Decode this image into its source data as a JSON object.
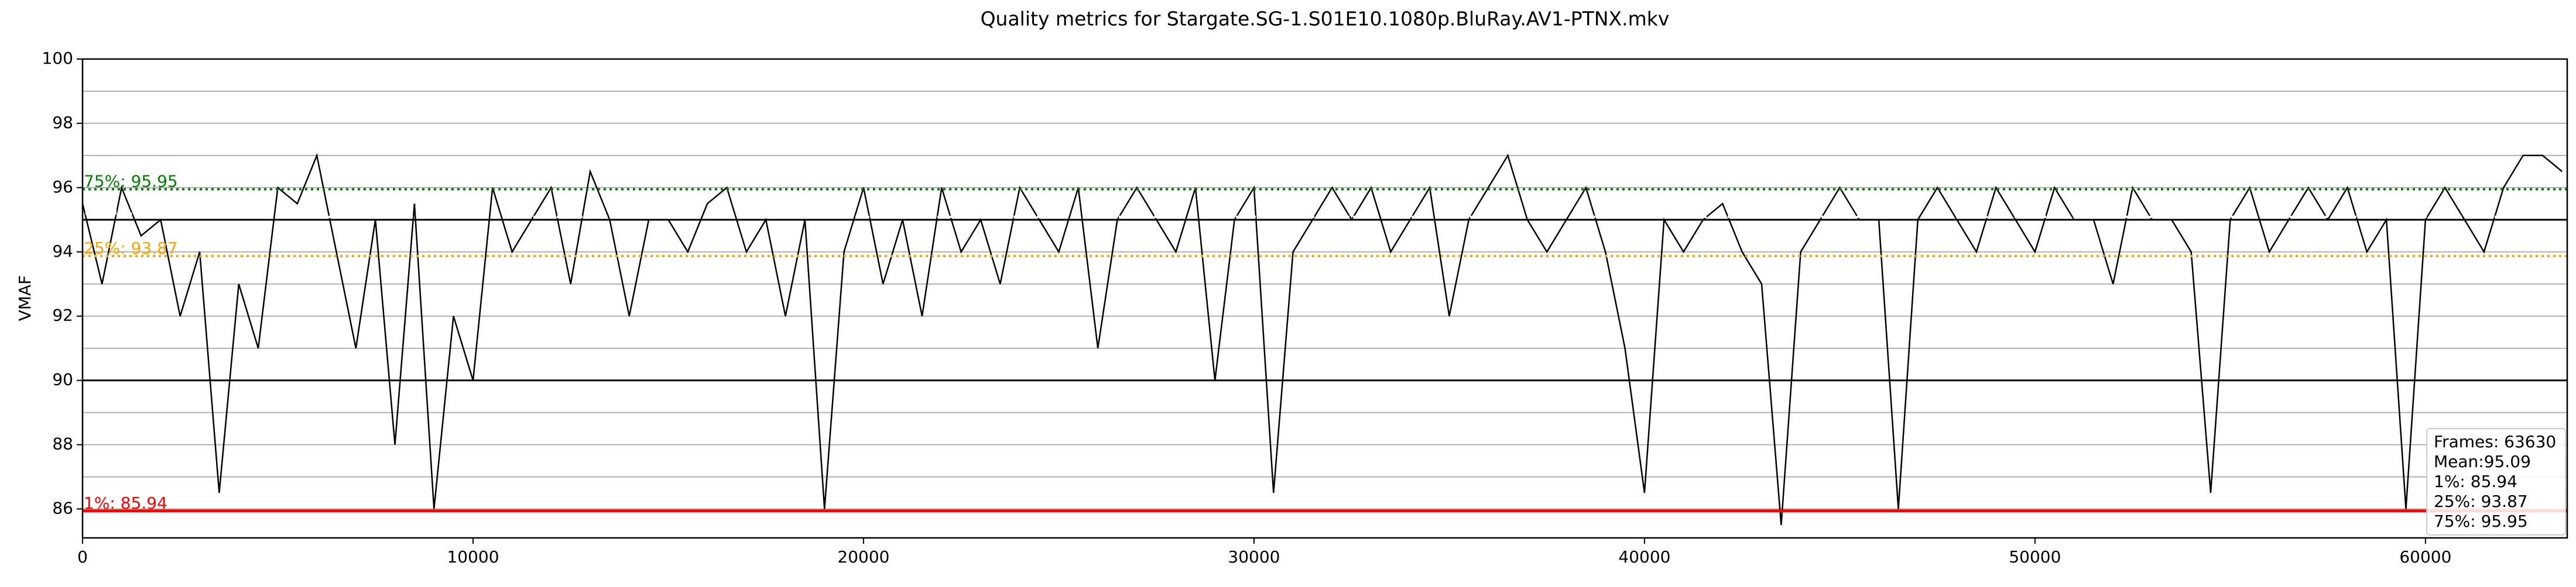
{
  "chart_data": {
    "type": "line",
    "title": "Quality metrics for Stargate.SG-1.S01E10.1080p.BluRay.AV1-PTNX.mkv",
    "y_label": "VMAF",
    "color": "#000000",
    "x": [
      0,
      500,
      1000,
      1500,
      2000,
      2500,
      3000,
      3500,
      4000,
      4500,
      5000,
      5500,
      6000,
      6500,
      7000,
      7500,
      8000,
      8500,
      9000,
      9500,
      10000,
      10500,
      11000,
      11500,
      12000,
      12500,
      13000,
      13500,
      14000,
      14500,
      15000,
      15500,
      16000,
      16500,
      17000,
      17500,
      18000,
      18500,
      19000,
      19500,
      20000,
      20500,
      21000,
      21500,
      22000,
      22500,
      23000,
      23500,
      24000,
      24500,
      25000,
      25500,
      26000,
      26500,
      27000,
      27500,
      28000,
      28500,
      29000,
      29500,
      30000,
      30500,
      31000,
      31500,
      32000,
      32500,
      33000,
      33500,
      34000,
      34500,
      35000,
      35500,
      36000,
      36500,
      37000,
      37500,
      38000,
      38500,
      39000,
      39500,
      40000,
      40500,
      41000,
      41500,
      42000,
      42500,
      43000,
      43500,
      44000,
      44500,
      45000,
      45500,
      46000,
      46500,
      47000,
      47500,
      48000,
      48500,
      49000,
      49500,
      50000,
      50500,
      51000,
      51500,
      52000,
      52500,
      53000,
      53500,
      54000,
      54500,
      55000,
      55500,
      56000,
      56500,
      57000,
      57500,
      58000,
      58500,
      59000,
      59500,
      60000,
      60500,
      61000,
      61500,
      62000,
      62500,
      63000,
      63500
    ],
    "values": [
      95.5,
      93,
      96,
      94.5,
      95,
      92,
      94,
      86.5,
      93,
      91,
      96,
      95.5,
      97,
      94,
      91,
      95,
      88,
      95.5,
      86,
      92,
      90,
      96,
      94,
      95,
      96,
      93,
      96.5,
      95,
      92,
      95,
      95,
      94,
      95.5,
      96,
      94,
      95,
      92,
      95,
      86,
      94,
      96,
      93,
      95,
      92,
      96,
      94,
      95,
      93,
      96,
      95,
      94,
      96,
      91,
      95,
      96,
      95,
      94,
      96,
      90,
      95,
      96,
      86.5,
      94,
      95,
      96,
      95,
      96,
      94,
      95,
      96,
      92,
      95,
      96,
      97,
      95,
      94,
      95,
      96,
      94,
      91,
      86.5,
      95,
      94,
      95,
      95.5,
      94,
      93,
      85.5,
      94,
      95,
      96,
      95,
      95,
      86,
      95,
      96,
      95,
      94,
      96,
      95,
      94,
      96,
      95,
      95,
      93,
      96,
      95,
      95,
      94,
      86.5,
      95,
      96,
      94,
      95,
      96,
      95,
      96,
      94,
      95,
      86,
      95,
      96,
      95,
      94,
      96,
      97,
      97,
      96.5
    ],
    "xlim": [
      0,
      63630
    ],
    "ylim": [
      85.1,
      100
    ],
    "xticks": [
      0,
      10000,
      20000,
      30000,
      40000,
      50000,
      60000
    ],
    "yticks": [
      86,
      88,
      90,
      92,
      94,
      96,
      98,
      100
    ],
    "minor_yticks": [
      87,
      89,
      91,
      93,
      95,
      97,
      99
    ],
    "major_ref_lines": [
      90,
      95
    ],
    "ref_lines": [
      {
        "label": "1%: 85.94",
        "value": 85.94,
        "color": "#ff0000",
        "style": "solid"
      },
      {
        "label": "25%: 93.87",
        "value": 93.87,
        "color": "#ffa500",
        "style": "dotted"
      },
      {
        "label": "Mean: 95.09",
        "value": 95.09,
        "color": "#ffffff",
        "style": "dotted"
      },
      {
        "label": "75%: 95.95",
        "value": 95.95,
        "color": "#008000",
        "style": "dotted"
      }
    ],
    "stats_box": [
      "Frames: 63630",
      "Mean:95.09",
      "1%: 85.94",
      "25%: 93.87",
      "75%: 95.95"
    ]
  }
}
